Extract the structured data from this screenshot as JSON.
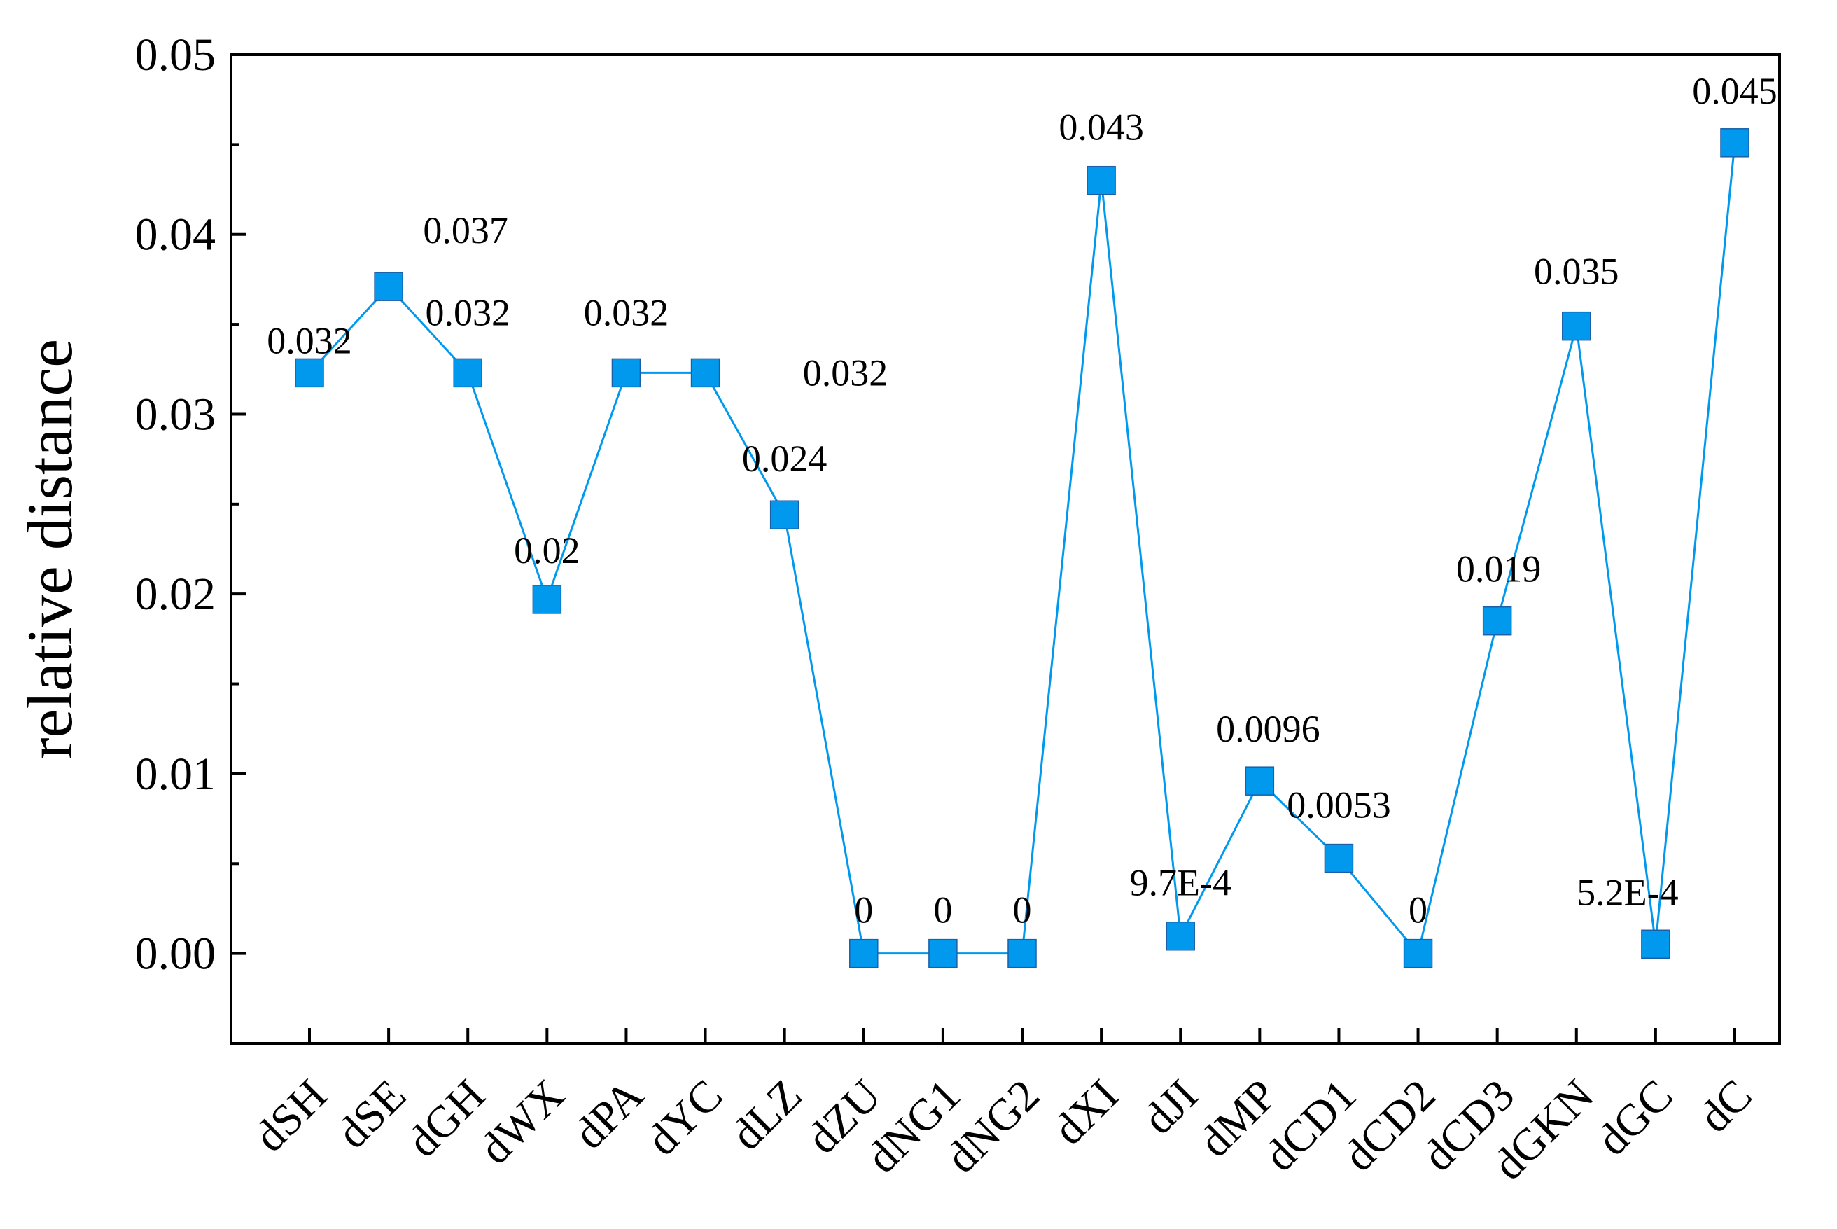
{
  "chart_data": {
    "type": "line",
    "title": "",
    "xlabel": "",
    "ylabel": "relative distance",
    "ylim": [
      -0.005,
      0.05
    ],
    "yticks": [
      "0.00",
      "0.01",
      "0.02",
      "0.03",
      "0.04",
      "0.05"
    ],
    "y_tick_values": [
      0,
      0.01,
      0.02,
      0.03,
      0.04,
      0.05
    ],
    "grid": false,
    "legend": "none",
    "marker": "square",
    "color": "#0099ee",
    "categories": [
      "dSH",
      "dSE",
      "dGH",
      "dWX",
      "dPA",
      "dYC",
      "dLZ",
      "dZU",
      "dNG1",
      "dNG2",
      "dXI",
      "dJI",
      "dMP",
      "dCD1",
      "dCD2",
      "dCD3",
      "dGKN",
      "dGC",
      "dC"
    ],
    "values": [
      0.0323,
      0.0371,
      0.0323,
      0.0197,
      0.0323,
      0.0323,
      0.0244,
      0,
      0,
      0,
      0.043,
      0.00097,
      0.0096,
      0.0053,
      0,
      0.0185,
      0.0349,
      0.00052,
      0.0451
    ],
    "data_labels": [
      "0.032",
      "0.037",
      "0.032",
      "0.02",
      "0.032",
      "0.032",
      "0.024",
      "0",
      "0",
      "0",
      "0.043",
      "9.7E-4",
      "0.0096",
      "0.0053",
      "0",
      "0.019",
      "0.035",
      "5.2E-4",
      "0.045"
    ]
  }
}
